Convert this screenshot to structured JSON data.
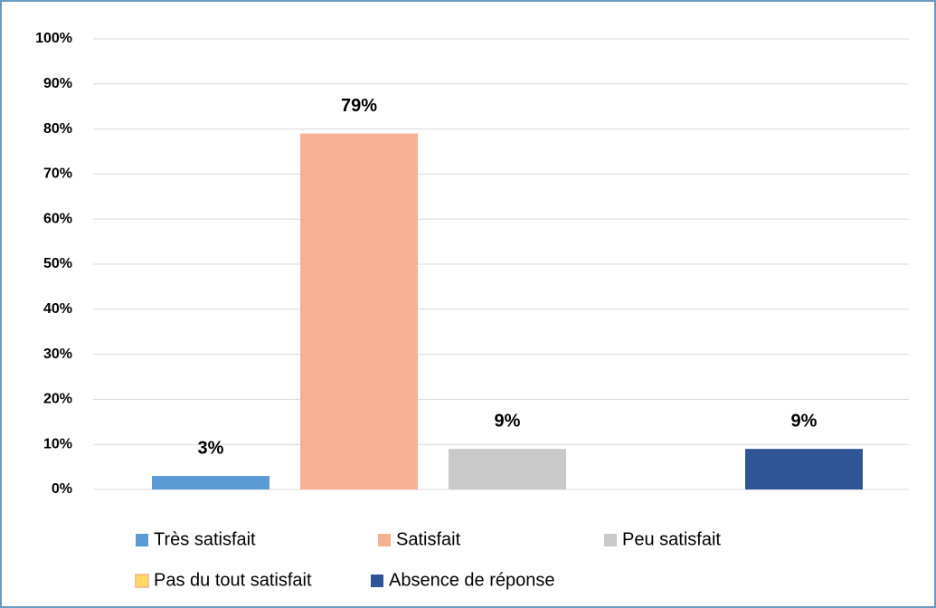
{
  "chart_data": {
    "type": "bar",
    "series": [
      {
        "name": "Très satisfait",
        "color": "#5b9bd5",
        "values": [
          3
        ],
        "value_labels": [
          "3%"
        ]
      },
      {
        "name": "Satisfait",
        "color": "#f6b092",
        "values": [
          79
        ],
        "value_labels": [
          "79%"
        ]
      },
      {
        "name": "Peu satisfait",
        "color": "#c9c9c9",
        "values": [
          9
        ],
        "value_labels": [
          "9%"
        ]
      },
      {
        "name": "Pas du tout satisfait",
        "color": "#ffd966",
        "values": [
          0
        ]
      },
      {
        "name": "Absence de réponse",
        "color": "#2f5597",
        "values": [
          9
        ],
        "value_labels": [
          "9%"
        ]
      }
    ],
    "ylim": [
      0,
      100
    ],
    "yticks": [
      {
        "value": 0,
        "label": "0%"
      },
      {
        "value": 10,
        "label": "10%"
      },
      {
        "value": 20,
        "label": "20%"
      },
      {
        "value": 30,
        "label": "30%"
      },
      {
        "value": 40,
        "label": "40%"
      },
      {
        "value": 50,
        "label": "50%"
      },
      {
        "value": 60,
        "label": "60%"
      },
      {
        "value": 70,
        "label": "70%"
      },
      {
        "value": 80,
        "label": "80%"
      },
      {
        "value": 90,
        "label": "90%"
      },
      {
        "value": 100,
        "label": "100%"
      }
    ],
    "grid": true
  }
}
